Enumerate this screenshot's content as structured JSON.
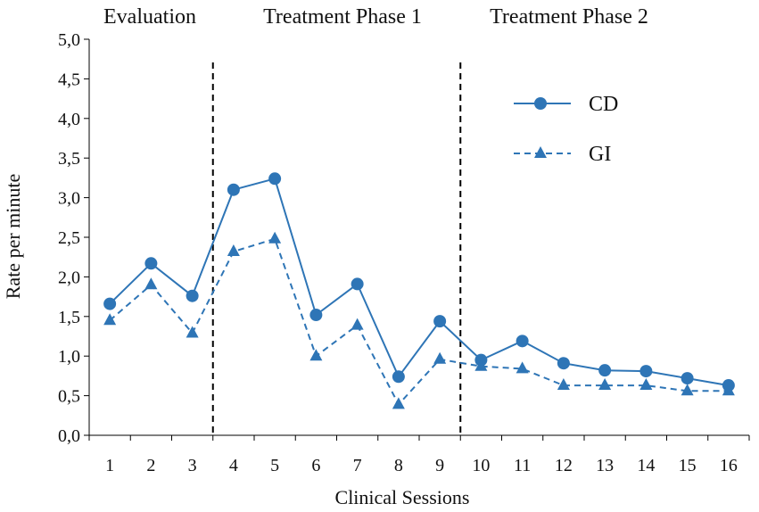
{
  "chart_data": {
    "type": "line",
    "title": "",
    "xlabel": "Clinical Sessions",
    "ylabel": "Rate per minute",
    "categories": [
      "1",
      "2",
      "3",
      "4",
      "5",
      "6",
      "7",
      "8",
      "9",
      "10",
      "11",
      "12",
      "13",
      "14",
      "15",
      "16"
    ],
    "yticks": [
      "0,0",
      "0,5",
      "1,0",
      "1,5",
      "2,0",
      "2,5",
      "3,0",
      "3,5",
      "4,0",
      "4,5",
      "5,0"
    ],
    "ylim": [
      0,
      5
    ],
    "grid": false,
    "legend_position": "top-right",
    "color": "#2e75b6",
    "series": [
      {
        "name": "CD",
        "style": "solid",
        "marker": "circle",
        "values": [
          1.66,
          2.17,
          1.76,
          3.1,
          3.24,
          1.52,
          1.91,
          0.74,
          1.44,
          0.95,
          1.19,
          0.91,
          0.82,
          0.81,
          0.72,
          0.63
        ]
      },
      {
        "name": "GI",
        "style": "dashed",
        "marker": "triangle",
        "values": [
          1.45,
          1.9,
          1.29,
          2.32,
          2.48,
          1.0,
          1.39,
          0.39,
          0.96,
          0.87,
          0.84,
          0.63,
          0.63,
          0.63,
          0.56,
          0.56
        ]
      }
    ],
    "phase_dividers_after": [
      3,
      9
    ],
    "phases": [
      "Evaluation",
      "Treatment Phase 1",
      "Treatment Phase 2"
    ]
  }
}
